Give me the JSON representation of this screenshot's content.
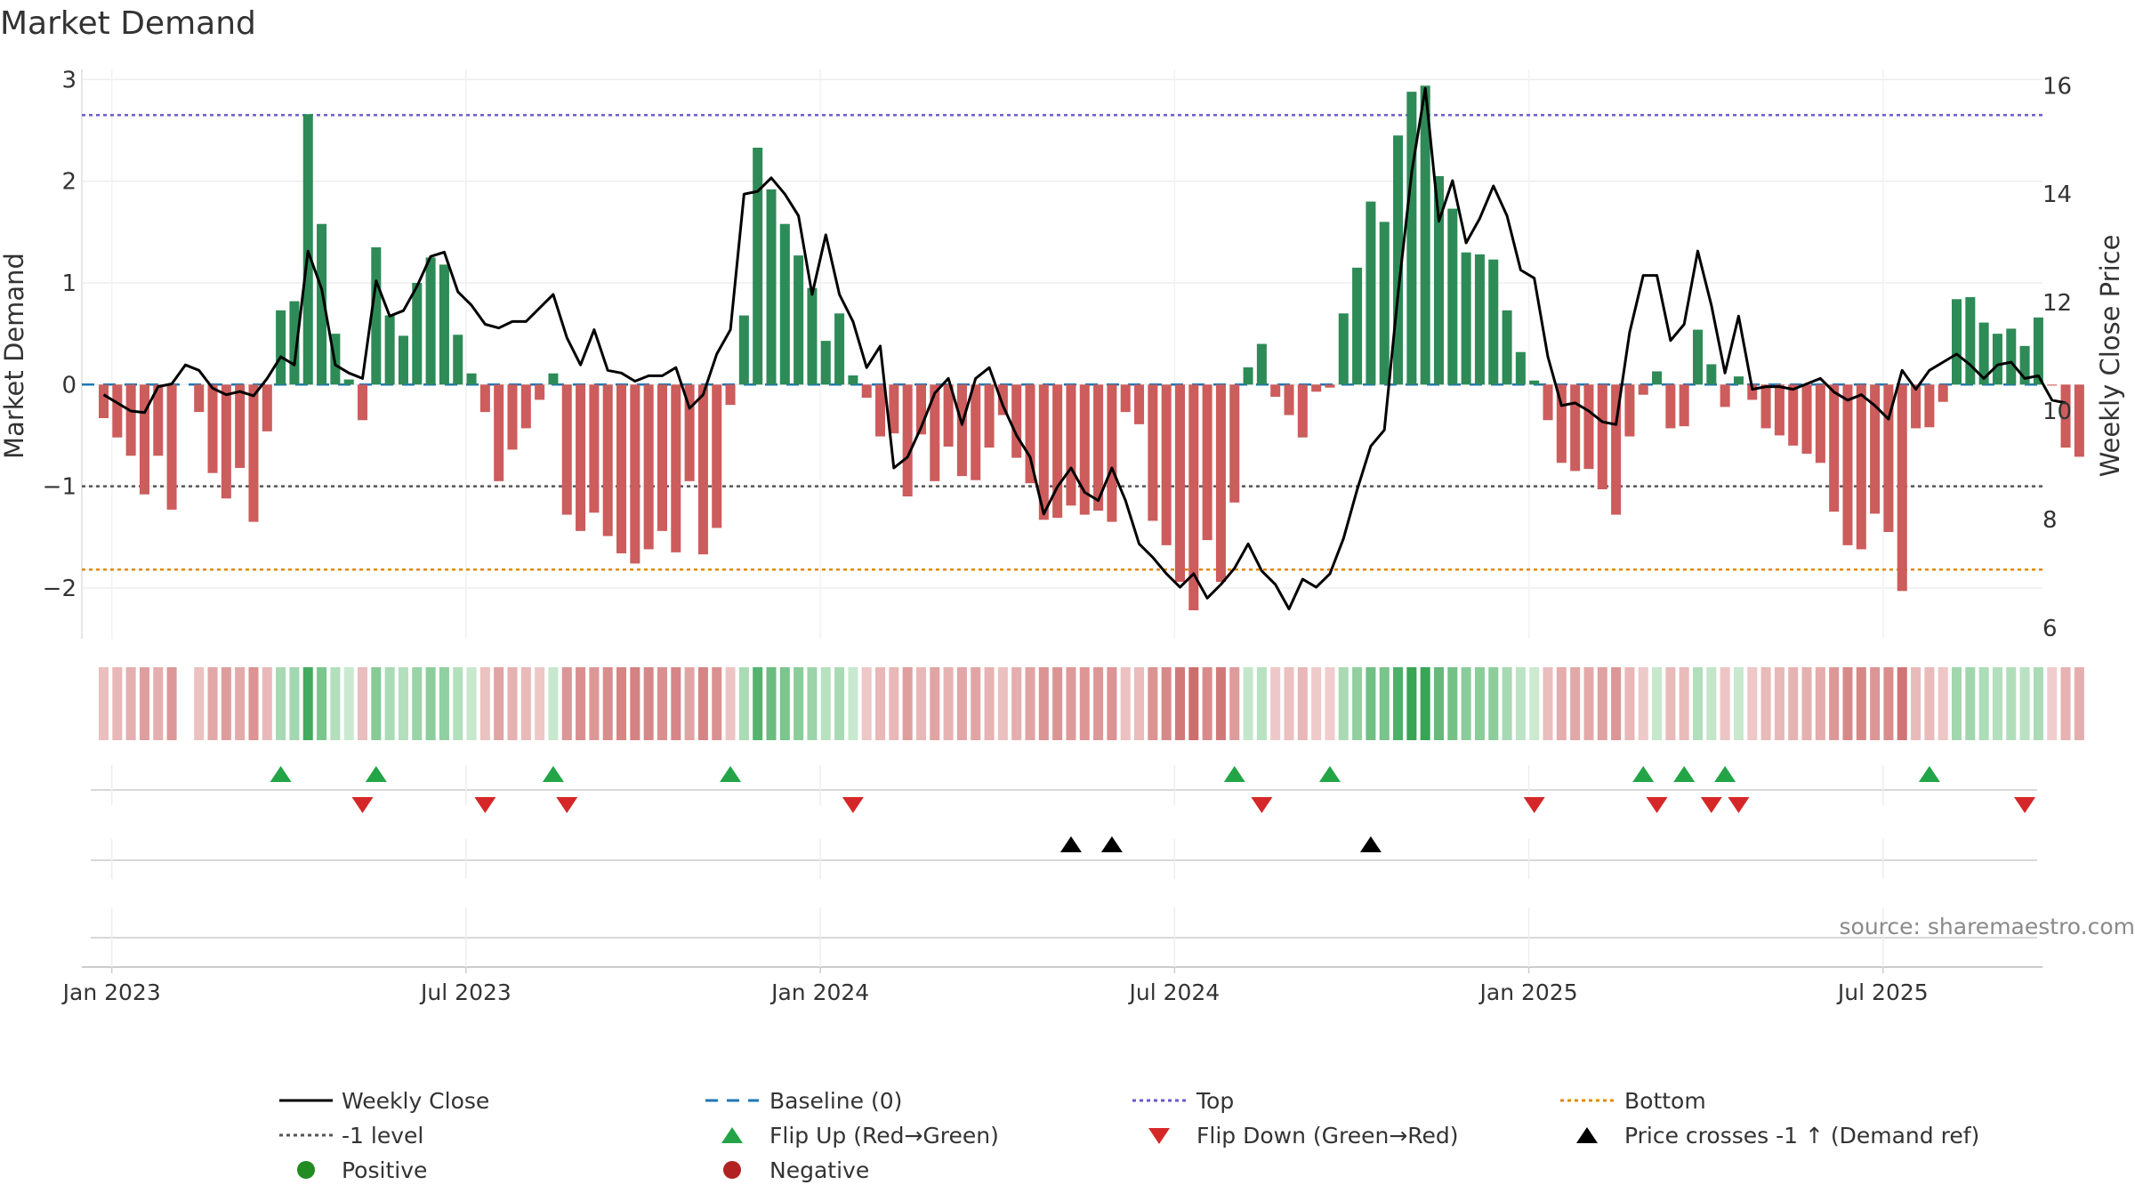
{
  "chart_data": {
    "type": "bar",
    "title": "Market Demand",
    "ylabel": "Market Demand",
    "y2label": "Weekly Close Price",
    "ylim": [
      -2.5,
      3.1
    ],
    "y2lim": [
      5.8,
      16.3
    ],
    "yticks": [
      3,
      2,
      1,
      0,
      -1,
      -2
    ],
    "ytick_labels": [
      "3",
      "2",
      "1",
      "0",
      "−1",
      "−2"
    ],
    "y2ticks": [
      16,
      14,
      12,
      10,
      8,
      6
    ],
    "xlim": [
      -1.6,
      142.3
    ],
    "x_ticks": [
      {
        "label": "Jan 2023",
        "week": 0.6
      },
      {
        "label": "Jul 2023",
        "week": 26.6
      },
      {
        "label": "Jan 2024",
        "week": 52.6
      },
      {
        "label": "Jul 2024",
        "week": 78.6
      },
      {
        "label": "Jan 2025",
        "week": 104.6
      },
      {
        "label": "Jul 2025",
        "week": 130.6
      }
    ],
    "reference_lines": {
      "top": 2.65,
      "minus_one": -1.0,
      "bottom": -1.82,
      "baseline": 0
    },
    "series": [
      {
        "name": "Market Demand",
        "values": [
          -0.33,
          -0.52,
          -0.7,
          -1.08,
          -0.7,
          -1.23,
          0,
          -0.27,
          -0.87,
          -1.12,
          -0.82,
          -1.35,
          -0.46,
          0.73,
          0.82,
          2.66,
          1.58,
          0.5,
          0.05,
          -0.35,
          1.35,
          0.68,
          0.48,
          1.0,
          1.25,
          1.18,
          0.49,
          0.11,
          -0.27,
          -0.95,
          -0.64,
          -0.43,
          -0.15,
          0.11,
          -1.28,
          -1.44,
          -1.26,
          -1.49,
          -1.66,
          -1.76,
          -1.62,
          -1.44,
          -1.65,
          -0.95,
          -1.67,
          -1.41,
          -0.2,
          0.68,
          2.33,
          1.92,
          1.58,
          1.27,
          0.95,
          0.43,
          0.7,
          0.09,
          -0.13,
          -0.51,
          -0.48,
          -1.1,
          -0.49,
          -0.95,
          -0.61,
          -0.9,
          -0.94,
          -0.62,
          -0.3,
          -0.72,
          -0.97,
          -1.33,
          -1.31,
          -1.19,
          -1.28,
          -1.24,
          -1.35,
          -0.27,
          -0.39,
          -1.34,
          -1.58,
          -1.94,
          -2.22,
          -1.53,
          -1.94,
          -1.16,
          0.17,
          0.4,
          -0.12,
          -0.3,
          -0.52,
          -0.07,
          -0.03,
          0.7,
          1.15,
          1.8,
          1.6,
          2.45,
          2.88,
          2.94,
          2.05,
          1.73,
          1.3,
          1.28,
          1.23,
          0.73,
          0.32,
          0.04,
          -0.35,
          -0.77,
          -0.85,
          -0.83,
          -1.03,
          -1.28,
          -0.51,
          -0.1,
          0.13,
          -0.43,
          -0.41,
          0.54,
          0.2,
          -0.22,
          0.08,
          -0.15,
          -0.43,
          -0.5,
          -0.6,
          -0.68,
          -0.77,
          -1.25,
          -1.58,
          -1.62,
          -1.27,
          -1.45,
          -2.03,
          -0.43,
          -0.42,
          -0.17,
          0.84,
          0.86,
          0.61,
          0.5,
          0.55,
          0.38,
          0.66,
          -0.01,
          -0.62,
          -0.71
        ]
      },
      {
        "name": "Weekly Close",
        "values": [
          10.3,
          10.15,
          10.0,
          9.97,
          10.45,
          10.5,
          10.85,
          10.75,
          10.42,
          10.3,
          10.36,
          10.28,
          10.6,
          11.0,
          10.85,
          12.95,
          12.25,
          10.85,
          10.7,
          10.6,
          12.4,
          11.75,
          11.85,
          12.3,
          12.85,
          12.93,
          12.2,
          11.95,
          11.6,
          11.53,
          11.65,
          11.65,
          11.9,
          12.15,
          11.35,
          10.85,
          11.5,
          10.75,
          10.7,
          10.55,
          10.65,
          10.65,
          10.8,
          10.05,
          10.3,
          11.05,
          11.5,
          14.0,
          14.05,
          14.3,
          14.0,
          13.6,
          12.15,
          13.25,
          12.15,
          11.65,
          10.8,
          11.2,
          8.95,
          9.15,
          9.7,
          10.33,
          10.6,
          9.75,
          10.6,
          10.8,
          10.1,
          9.55,
          9.15,
          8.1,
          8.6,
          8.95,
          8.5,
          8.35,
          8.95,
          8.35,
          7.55,
          7.3,
          7.0,
          6.75,
          7.0,
          6.55,
          6.8,
          7.1,
          7.55,
          7.05,
          6.8,
          6.35,
          6.9,
          6.75,
          7.0,
          7.65,
          8.55,
          9.35,
          9.65,
          12.15,
          14.4,
          15.95,
          13.5,
          14.25,
          13.1,
          13.55,
          14.15,
          13.6,
          12.6,
          12.45,
          11.0,
          10.1,
          10.15,
          10.0,
          9.8,
          9.75,
          11.45,
          12.5,
          12.5,
          11.3,
          11.6,
          12.95,
          11.95,
          10.7,
          11.75,
          10.4,
          10.45,
          10.45,
          10.4,
          10.5,
          10.6,
          10.35,
          10.2,
          10.3,
          10.1,
          9.85,
          10.75,
          10.4,
          10.75,
          10.9,
          11.05,
          10.85,
          10.6,
          10.85,
          10.9,
          10.6,
          10.65,
          10.2,
          10.15
        ]
      }
    ],
    "flip_up_weeks": [
      13,
      20,
      33,
      46,
      83,
      90,
      113,
      116,
      119,
      134
    ],
    "flip_down_weeks": [
      19,
      28,
      34,
      55,
      85,
      105,
      114,
      118,
      120,
      141
    ],
    "price_cross_weeks": [
      71,
      74,
      93
    ]
  },
  "source": "source: sharemaestro.com",
  "legend": [
    {
      "key": "weekly-close",
      "label": "Weekly Close"
    },
    {
      "key": "baseline",
      "label": "Baseline (0)"
    },
    {
      "key": "top",
      "label": "Top"
    },
    {
      "key": "bottom",
      "label": "Bottom"
    },
    {
      "key": "minus-one",
      "label": "-1 level"
    },
    {
      "key": "flip-up",
      "label": "Flip Up (Red→Green)"
    },
    {
      "key": "flip-down",
      "label": "Flip Down (Green→Red)"
    },
    {
      "key": "price-cross",
      "label": "Price crosses -1 ↑ (Demand ref)"
    },
    {
      "key": "positive",
      "label": "Positive"
    },
    {
      "key": "negative",
      "label": "Negative"
    }
  ],
  "colors": {
    "positive_bar": "#2e8b57",
    "negative_bar": "#cd5c5c",
    "close_line": "#000000",
    "top_line": "#6a5acd",
    "bottom_line": "#e08a00",
    "minus_one_line": "#555555",
    "baseline": "#1f77b4",
    "flip_up": "#22a447",
    "flip_down": "#d62728",
    "price_cross": "#000000",
    "positive_dot": "#228b22",
    "negative_dot": "#b22222"
  }
}
